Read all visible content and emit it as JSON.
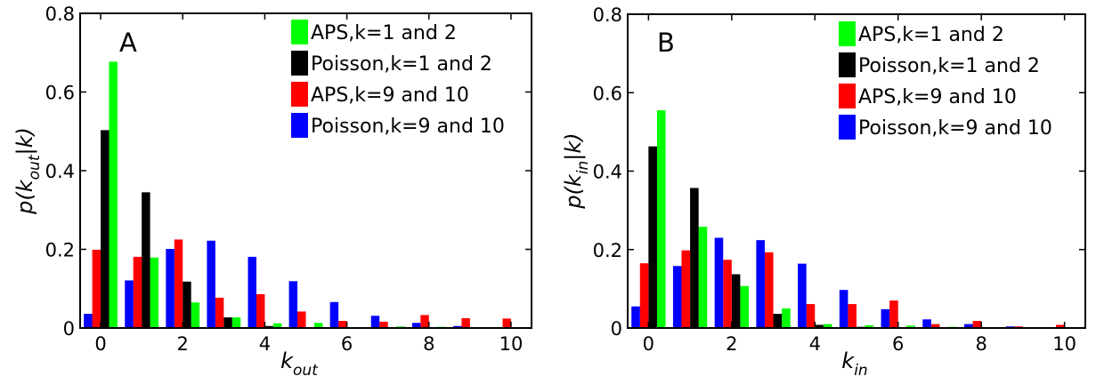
{
  "chart_data": [
    {
      "type": "bar",
      "panel_label": "A",
      "x": [
        0,
        1,
        2,
        3,
        4,
        5,
        6,
        7,
        8,
        9,
        10
      ],
      "xlim": [
        -0.5,
        10.5
      ],
      "ylim": [
        0,
        0.8
      ],
      "xticks": [
        "0",
        "2",
        "4",
        "6",
        "8",
        "10"
      ],
      "xtick_values": [
        0,
        2,
        4,
        6,
        8,
        10
      ],
      "yticks": [
        "0",
        "0.2",
        "0.4",
        "0.6",
        "0.8"
      ],
      "ytick_values": [
        0,
        0.2,
        0.4,
        0.6,
        0.8
      ],
      "xlabel": {
        "base": "k",
        "sub": "out"
      },
      "ylabel": {
        "pre": "p(k",
        "sub": "out",
        "post": "|k)"
      },
      "legend_position": "top-right",
      "series": [
        {
          "name": "APS,k=1 and 2",
          "color": "#00ff00",
          "values": [
            0.677,
            0.179,
            0.065,
            0.027,
            0.012,
            0.013,
            0.0,
            0.004,
            0.003,
            0.0,
            0.0
          ]
        },
        {
          "name": "Poisson,k=1 and 2",
          "color": "#000000",
          "values": [
            0.503,
            0.345,
            0.118,
            0.027,
            0.005,
            0.001,
            0.0,
            0.0,
            0.0,
            0.0,
            0.0
          ]
        },
        {
          "name": "APS,k=9 and 10",
          "color": "#ff0000",
          "values": [
            0.199,
            0.181,
            0.225,
            0.077,
            0.086,
            0.042,
            0.018,
            0.016,
            0.033,
            0.025,
            0.024
          ]
        },
        {
          "name": "Poisson,k=9 and 10",
          "color": "#0000ff",
          "values": [
            0.036,
            0.121,
            0.201,
            0.222,
            0.181,
            0.119,
            0.066,
            0.031,
            0.013,
            0.005,
            0.0
          ]
        }
      ]
    },
    {
      "type": "bar",
      "panel_label": "B",
      "x": [
        0,
        1,
        2,
        3,
        4,
        5,
        6,
        7,
        8,
        9,
        10
      ],
      "xlim": [
        -0.5,
        10.5
      ],
      "ylim": [
        0,
        0.8
      ],
      "xticks": [
        "0",
        "2",
        "4",
        "6",
        "8",
        "10"
      ],
      "xtick_values": [
        0,
        2,
        4,
        6,
        8,
        10
      ],
      "yticks": [
        "0",
        "0.2",
        "0.4",
        "0.6",
        "0.8"
      ],
      "ytick_values": [
        0,
        0.2,
        0.4,
        0.6,
        0.8
      ],
      "xlabel": {
        "base": "k",
        "sub": "in"
      },
      "ylabel": {
        "pre": "p(k",
        "sub": "in",
        "post": "|k)"
      },
      "legend_position": "top-right",
      "series": [
        {
          "name": "APS,k=1 and 2",
          "color": "#00ff00",
          "values": [
            0.555,
            0.258,
            0.107,
            0.05,
            0.01,
            0.007,
            0.006,
            0.003,
            0.002,
            0.0,
            0.0
          ]
        },
        {
          "name": "Poisson,k=1 and 2",
          "color": "#000000",
          "values": [
            0.463,
            0.357,
            0.137,
            0.036,
            0.008,
            0.003,
            0.0,
            0.0,
            0.0,
            0.0,
            0.0
          ]
        },
        {
          "name": "APS,k=9 and 10",
          "color": "#ff0000",
          "values": [
            0.165,
            0.198,
            0.174,
            0.193,
            0.061,
            0.061,
            0.07,
            0.01,
            0.018,
            0.004,
            0.008
          ]
        },
        {
          "name": "Poisson,k=9 and 10",
          "color": "#0000ff",
          "values": [
            0.055,
            0.158,
            0.23,
            0.224,
            0.164,
            0.097,
            0.048,
            0.022,
            0.01,
            0.004,
            0.0
          ]
        }
      ]
    }
  ]
}
